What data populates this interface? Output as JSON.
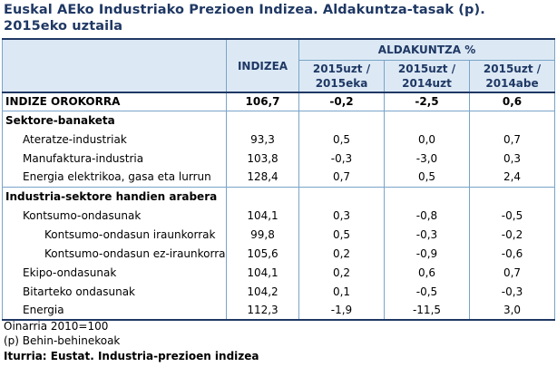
{
  "title": {
    "line1": "Euskal AEko Industriako Prezioen Indizea. Aldakuntza-tasak (p).",
    "line2": "2015eko uztaila"
  },
  "header": {
    "indizea": "INDIZEA",
    "aldakuntza": "ALDAKUNTZA %",
    "col1": [
      "2015uzt /",
      "2015eka"
    ],
    "col2": [
      "2015uzt /",
      "2014uzt"
    ],
    "col3": [
      "2015uzt /",
      "2014abe"
    ]
  },
  "rows": {
    "orokorra": {
      "label": "INDIZE OROKORRA",
      "indizea": "106,7",
      "c1": "-0,2",
      "c2": "-2,5",
      "c3": "0,6"
    },
    "sektore_heading": "Sektore-banaketa",
    "ateratze": {
      "label": "Ateratze-industriak",
      "indizea": "93,3",
      "c1": "0,5",
      "c2": "0,0",
      "c3": "0,7"
    },
    "manufaktura": {
      "label": "Manufaktura-industria",
      "indizea": "103,8",
      "c1": "-0,3",
      "c2": "-3,0",
      "c3": "0,3"
    },
    "energia_elek": {
      "label": "Energia elektrikoa, gasa eta lurrun",
      "indizea": "128,4",
      "c1": "0,7",
      "c2": "0,5",
      "c3": "2,4"
    },
    "industria_heading": "Industria-sektore handien arabera",
    "kontsumo": {
      "label": "Kontsumo-ondasunak",
      "indizea": "104,1",
      "c1": "0,3",
      "c2": "-0,8",
      "c3": "-0,5"
    },
    "kontsumo_iraunk": {
      "label": "Kontsumo-ondasun iraunkorrak",
      "indizea": "99,8",
      "c1": "0,5",
      "c2": "-0,3",
      "c3": "-0,2"
    },
    "kontsumo_ezirau": {
      "label": "Kontsumo-ondasun ez-iraunkorrak",
      "indizea": "105,6",
      "c1": "0,2",
      "c2": "-0,9",
      "c3": "-0,6"
    },
    "ekipo": {
      "label": "Ekipo-ondasunak",
      "indizea": "104,1",
      "c1": "0,2",
      "c2": "0,6",
      "c3": "0,7"
    },
    "bitarteko": {
      "label": "Bitarteko ondasunak",
      "indizea": "104,2",
      "c1": "0,1",
      "c2": "-0,5",
      "c3": "-0,3"
    },
    "energia": {
      "label": "Energia",
      "indizea": "112,3",
      "c1": "-1,9",
      "c2": "-11,5",
      "c3": "3,0"
    }
  },
  "footer": {
    "oinarria": "Oinarria 2010=100",
    "behin": "(p) Behin-behinekoak",
    "iturria": "Iturria: Eustat. Industria-prezioen indizea"
  },
  "colors": {
    "title": "#1f3864",
    "header_bg": "#dce9f5",
    "grid": "#7aa4c8"
  }
}
